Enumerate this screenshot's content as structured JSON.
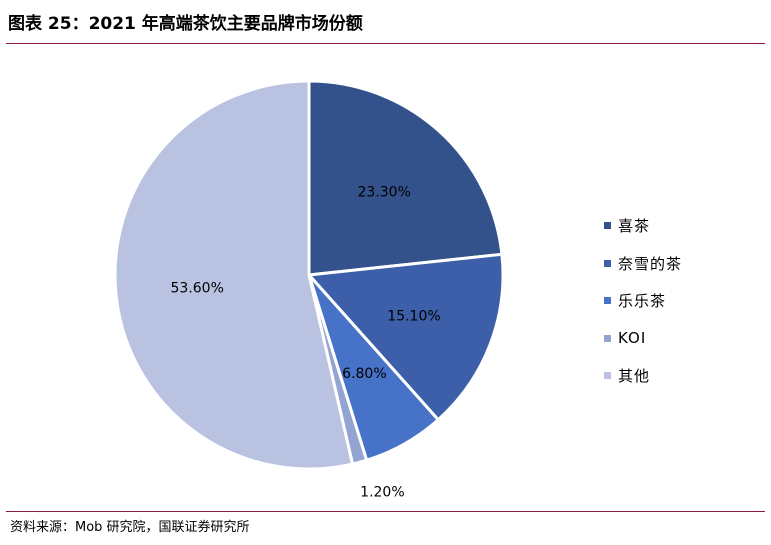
{
  "header": {
    "title": "图表 25：2021 年高端茶饮主要品牌市场份额"
  },
  "footer": {
    "source": "资料来源：Mob 研究院，国联证券研究所"
  },
  "chart_data": {
    "type": "pie",
    "title": "",
    "series": [
      {
        "name": "喜茶",
        "value": 23.3,
        "label": "23.30%",
        "color": "#33528c"
      },
      {
        "name": "奈雪的茶",
        "value": 15.1,
        "label": "15.10%",
        "color": "#3d5fa9"
      },
      {
        "name": "乐乐茶",
        "value": 6.8,
        "label": "6.80%",
        "color": "#4673c7"
      },
      {
        "name": "KOI",
        "value": 1.2,
        "label": "1.20%",
        "color": "#94a4d2"
      },
      {
        "name": "其他",
        "value": 53.6,
        "label": "53.60%",
        "color": "#b9c3e1"
      }
    ],
    "legend_position": "right"
  }
}
